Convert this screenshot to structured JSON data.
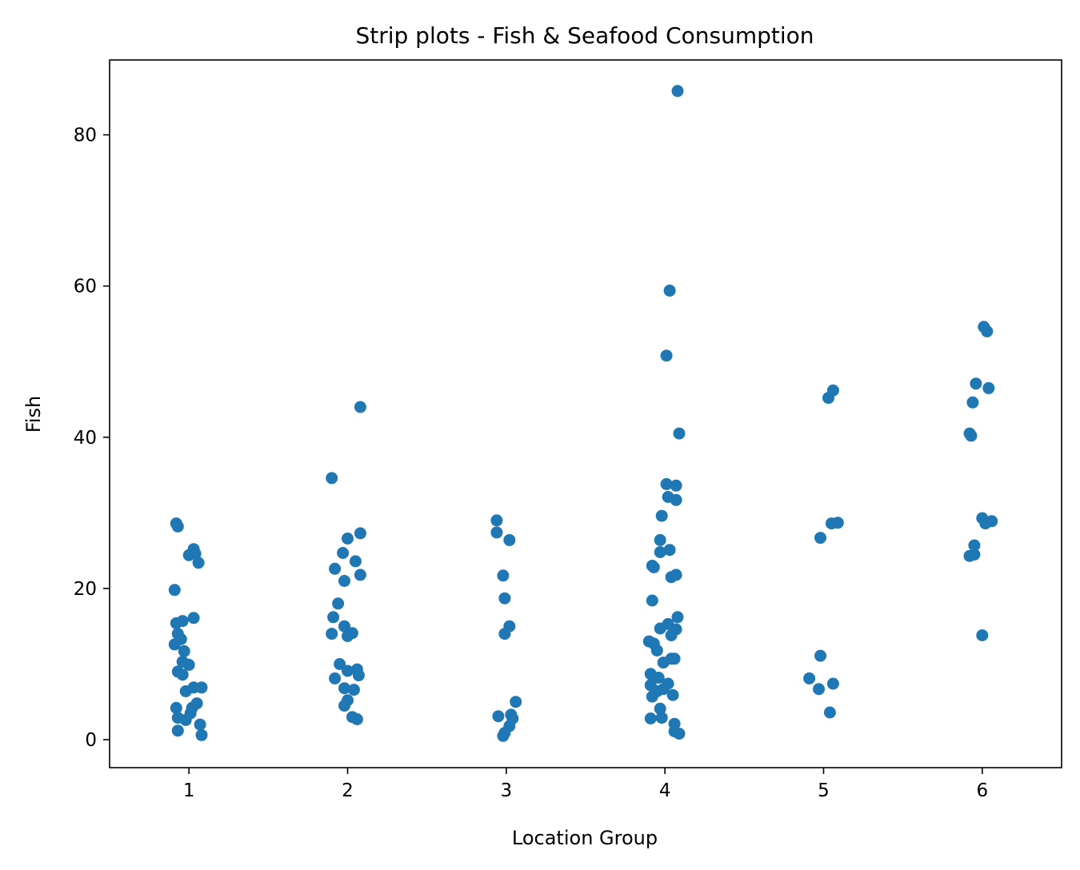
{
  "chart_data": {
    "type": "scatter",
    "subtype": "strip",
    "title": "Strip plots - Fish & Seafood Consumption",
    "xlabel": "Location Group",
    "ylabel": "Fish",
    "categories": [
      "1",
      "2",
      "3",
      "4",
      "5",
      "6"
    ],
    "yticks": [
      0,
      20,
      40,
      60,
      80
    ],
    "ylim": [
      -3.7,
      89.9
    ],
    "xlim": [
      0.5,
      6.5
    ],
    "grid": false,
    "legend": "none",
    "marker_color": "#1f77b4",
    "series": [
      {
        "points": [
          {
            "x": 0.92,
            "y": 28.6
          },
          {
            "x": 0.93,
            "y": 28.2
          },
          {
            "x": 1.03,
            "y": 25.2
          },
          {
            "x": 1.0,
            "y": 24.4
          },
          {
            "x": 1.04,
            "y": 24.6
          },
          {
            "x": 1.06,
            "y": 23.4
          },
          {
            "x": 0.91,
            "y": 19.8
          },
          {
            "x": 1.03,
            "y": 16.1
          },
          {
            "x": 0.92,
            "y": 15.4
          },
          {
            "x": 0.96,
            "y": 15.7
          },
          {
            "x": 0.93,
            "y": 14.0
          },
          {
            "x": 0.95,
            "y": 13.3
          },
          {
            "x": 0.91,
            "y": 12.6
          },
          {
            "x": 0.97,
            "y": 11.7
          },
          {
            "x": 0.96,
            "y": 10.3
          },
          {
            "x": 1.0,
            "y": 9.9
          },
          {
            "x": 0.93,
            "y": 9.0
          },
          {
            "x": 0.96,
            "y": 8.6
          },
          {
            "x": 1.03,
            "y": 6.9
          },
          {
            "x": 1.08,
            "y": 6.9
          },
          {
            "x": 0.98,
            "y": 6.4
          },
          {
            "x": 1.05,
            "y": 4.8
          },
          {
            "x": 1.02,
            "y": 4.2
          },
          {
            "x": 0.92,
            "y": 4.2
          },
          {
            "x": 1.01,
            "y": 3.5
          },
          {
            "x": 0.93,
            "y": 2.9
          },
          {
            "x": 0.98,
            "y": 2.6
          },
          {
            "x": 1.07,
            "y": 2.0
          },
          {
            "x": 0.93,
            "y": 1.2
          },
          {
            "x": 1.08,
            "y": 0.6
          }
        ]
      },
      {
        "points": [
          {
            "x": 2.08,
            "y": 44.0
          },
          {
            "x": 1.9,
            "y": 34.6
          },
          {
            "x": 2.08,
            "y": 27.3
          },
          {
            "x": 2.0,
            "y": 26.6
          },
          {
            "x": 1.97,
            "y": 24.7
          },
          {
            "x": 2.05,
            "y": 23.6
          },
          {
            "x": 1.92,
            "y": 22.6
          },
          {
            "x": 2.08,
            "y": 21.8
          },
          {
            "x": 1.98,
            "y": 21.0
          },
          {
            "x": 1.94,
            "y": 18.0
          },
          {
            "x": 1.91,
            "y": 16.2
          },
          {
            "x": 1.98,
            "y": 15.0
          },
          {
            "x": 2.03,
            "y": 14.1
          },
          {
            "x": 1.9,
            "y": 14.0
          },
          {
            "x": 2.0,
            "y": 13.7
          },
          {
            "x": 1.95,
            "y": 10.0
          },
          {
            "x": 2.06,
            "y": 9.3
          },
          {
            "x": 2.0,
            "y": 9.1
          },
          {
            "x": 2.07,
            "y": 8.5
          },
          {
            "x": 1.92,
            "y": 8.1
          },
          {
            "x": 1.98,
            "y": 6.8
          },
          {
            "x": 2.04,
            "y": 6.6
          },
          {
            "x": 2.0,
            "y": 5.2
          },
          {
            "x": 1.98,
            "y": 4.5
          },
          {
            "x": 2.03,
            "y": 3.0
          },
          {
            "x": 2.06,
            "y": 2.7
          }
        ]
      },
      {
        "points": [
          {
            "x": 2.94,
            "y": 29.0
          },
          {
            "x": 2.94,
            "y": 27.4
          },
          {
            "x": 3.02,
            "y": 26.4
          },
          {
            "x": 2.98,
            "y": 21.7
          },
          {
            "x": 2.99,
            "y": 18.7
          },
          {
            "x": 3.02,
            "y": 15.0
          },
          {
            "x": 2.99,
            "y": 14.0
          },
          {
            "x": 3.06,
            "y": 5.0
          },
          {
            "x": 3.03,
            "y": 3.3
          },
          {
            "x": 2.95,
            "y": 3.1
          },
          {
            "x": 3.04,
            "y": 2.8
          },
          {
            "x": 3.02,
            "y": 1.8
          },
          {
            "x": 2.99,
            "y": 0.9
          },
          {
            "x": 2.98,
            "y": 0.5
          }
        ]
      },
      {
        "points": [
          {
            "x": 4.08,
            "y": 85.8
          },
          {
            "x": 4.03,
            "y": 59.4
          },
          {
            "x": 4.01,
            "y": 50.8
          },
          {
            "x": 4.09,
            "y": 40.5
          },
          {
            "x": 4.01,
            "y": 33.8
          },
          {
            "x": 4.07,
            "y": 33.6
          },
          {
            "x": 4.02,
            "y": 32.1
          },
          {
            "x": 4.07,
            "y": 31.7
          },
          {
            "x": 3.98,
            "y": 29.6
          },
          {
            "x": 3.97,
            "y": 26.4
          },
          {
            "x": 3.97,
            "y": 24.8
          },
          {
            "x": 4.03,
            "y": 25.1
          },
          {
            "x": 3.92,
            "y": 23.0
          },
          {
            "x": 3.93,
            "y": 22.8
          },
          {
            "x": 4.07,
            "y": 21.8
          },
          {
            "x": 4.04,
            "y": 21.5
          },
          {
            "x": 3.92,
            "y": 18.4
          },
          {
            "x": 4.08,
            "y": 16.2
          },
          {
            "x": 4.02,
            "y": 15.3
          },
          {
            "x": 3.97,
            "y": 14.7
          },
          {
            "x": 4.07,
            "y": 14.6
          },
          {
            "x": 4.04,
            "y": 13.8
          },
          {
            "x": 3.9,
            "y": 13.0
          },
          {
            "x": 3.93,
            "y": 12.7
          },
          {
            "x": 3.95,
            "y": 11.8
          },
          {
            "x": 4.04,
            "y": 10.7
          },
          {
            "x": 4.06,
            "y": 10.7
          },
          {
            "x": 3.99,
            "y": 10.2
          },
          {
            "x": 3.91,
            "y": 8.7
          },
          {
            "x": 3.96,
            "y": 8.2
          },
          {
            "x": 4.02,
            "y": 7.4
          },
          {
            "x": 3.91,
            "y": 7.2
          },
          {
            "x": 3.99,
            "y": 6.7
          },
          {
            "x": 3.95,
            "y": 6.4
          },
          {
            "x": 3.92,
            "y": 5.7
          },
          {
            "x": 4.05,
            "y": 5.9
          },
          {
            "x": 3.97,
            "y": 4.1
          },
          {
            "x": 3.91,
            "y": 2.8
          },
          {
            "x": 3.98,
            "y": 2.9
          },
          {
            "x": 4.06,
            "y": 2.1
          },
          {
            "x": 4.06,
            "y": 1.1
          },
          {
            "x": 4.09,
            "y": 0.8
          }
        ]
      },
      {
        "points": [
          {
            "x": 5.06,
            "y": 46.2
          },
          {
            "x": 5.03,
            "y": 45.2
          },
          {
            "x": 5.09,
            "y": 28.7
          },
          {
            "x": 5.05,
            "y": 28.6
          },
          {
            "x": 4.98,
            "y": 26.7
          },
          {
            "x": 4.98,
            "y": 11.1
          },
          {
            "x": 4.91,
            "y": 8.1
          },
          {
            "x": 5.06,
            "y": 7.4
          },
          {
            "x": 4.97,
            "y": 6.7
          },
          {
            "x": 5.04,
            "y": 3.6
          }
        ]
      },
      {
        "points": [
          {
            "x": 6.01,
            "y": 54.6
          },
          {
            "x": 6.03,
            "y": 54.0
          },
          {
            "x": 5.96,
            "y": 47.1
          },
          {
            "x": 6.04,
            "y": 46.5
          },
          {
            "x": 5.94,
            "y": 44.6
          },
          {
            "x": 5.92,
            "y": 40.5
          },
          {
            "x": 5.93,
            "y": 40.2
          },
          {
            "x": 6.0,
            "y": 29.3
          },
          {
            "x": 6.06,
            "y": 28.9
          },
          {
            "x": 6.02,
            "y": 28.6
          },
          {
            "x": 5.95,
            "y": 25.7
          },
          {
            "x": 5.92,
            "y": 24.3
          },
          {
            "x": 5.95,
            "y": 24.5
          },
          {
            "x": 6.0,
            "y": 13.8
          }
        ]
      }
    ]
  }
}
